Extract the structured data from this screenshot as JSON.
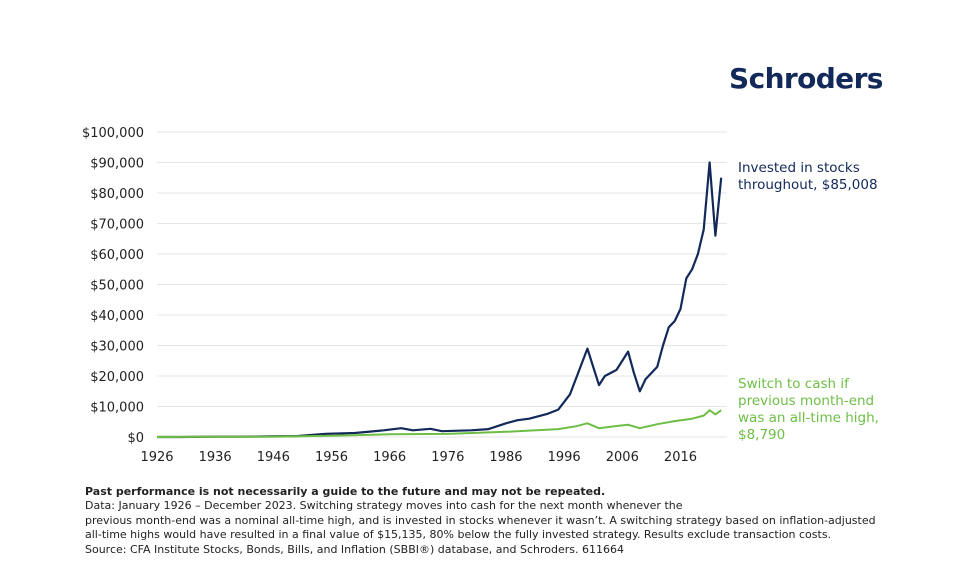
{
  "brand": {
    "logo_text": "Schroders"
  },
  "chart_data": {
    "type": "line",
    "y_ticks": [
      "$100,000",
      "$90,000",
      "$80,000",
      "$70,000",
      "$60,000",
      "$50,000",
      "$40,000",
      "$30,000",
      "$20,000",
      "$10,000",
      "$0"
    ],
    "x_ticks": [
      "1926",
      "1936",
      "1946",
      "1956",
      "1966",
      "1976",
      "1986",
      "1996",
      "2006",
      "2016"
    ],
    "ylim": [
      0,
      100000
    ],
    "xlim": [
      1926,
      2024
    ],
    "grid": "horizontal",
    "series": [
      {
        "label_line1": "Invested in stocks",
        "label_line2": "throughout, $85,008",
        "color": "#12295a",
        "x": [
          1926,
          1930,
          1936,
          1940,
          1946,
          1950,
          1955,
          1960,
          1965,
          1968,
          1970,
          1973,
          1975,
          1980,
          1983,
          1986,
          1988,
          1990,
          1993,
          1995,
          1997,
          1998,
          2000,
          2002,
          2003,
          2005,
          2007,
          2008,
          2009,
          2010,
          2012,
          2013,
          2014,
          2015,
          2016,
          2017,
          2018,
          2019,
          2020,
          2021,
          2022,
          2023
        ],
        "y": [
          0,
          0,
          100,
          100,
          200,
          300,
          1000,
          1300,
          2200,
          2900,
          2200,
          2700,
          1900,
          2200,
          2600,
          4500,
          5500,
          6000,
          7500,
          9000,
          14000,
          19000,
          29000,
          17000,
          20000,
          22000,
          28000,
          21000,
          15000,
          19000,
          23000,
          30000,
          36000,
          38000,
          42000,
          52000,
          55000,
          60000,
          68000,
          90000,
          66000,
          85008
        ]
      },
      {
        "label_line1": "Switch to cash if",
        "label_line2": "previous month-end",
        "label_line3": "was an all-time high,",
        "label_line4": "$8,790",
        "color": "#6dbe45",
        "x": [
          1926,
          1936,
          1946,
          1956,
          1966,
          1976,
          1986,
          1990,
          1995,
          1998,
          2000,
          2002,
          2005,
          2007,
          2009,
          2012,
          2015,
          2018,
          2020,
          2021,
          2022,
          2023
        ],
        "y": [
          0,
          50,
          100,
          400,
          900,
          1000,
          1700,
          2100,
          2600,
          3500,
          4500,
          2900,
          3600,
          4000,
          2900,
          4200,
          5200,
          6000,
          7000,
          8800,
          7400,
          8790
        ]
      }
    ]
  },
  "footnote": {
    "bold": "Past performance is not necessarily a guide to the future and may not be repeated.",
    "line1": "Data: January 1926 – December 2023. Switching strategy moves into cash for the next month whenever the",
    "line2": "previous month-end was a nominal all-time high, and is invested in stocks whenever it wasn’t. A switching strategy based on inflation-adjusted",
    "line3": "all-time highs would have resulted in a final value of $15,135, 80% below the fully invested strategy. Results exclude transaction costs.",
    "line4": "Source: CFA Institute Stocks, Bonds, Bills, and Inflation (SBBI®) database, and Schroders. 611664"
  }
}
